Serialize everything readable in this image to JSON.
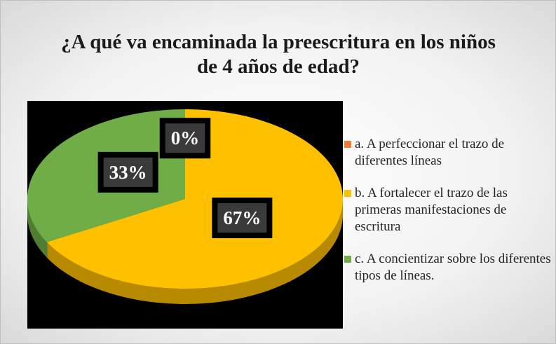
{
  "chart_data": {
    "type": "pie",
    "title": "¿A qué va encaminada la preescritura en los niños de 4 años de edad?",
    "categories": [
      "a.   A perfeccionar el trazo de diferentes líneas",
      "b.   A fortalecer el trazo de las primeras manifestaciones de escritura",
      "c. A concientizar sobre los diferentes tipos de líneas."
    ],
    "values": [
      0,
      67,
      33
    ],
    "value_labels": [
      "0%",
      "67%",
      "33%"
    ],
    "colors": [
      "#ED7D31",
      "#FFC000",
      "#70AD47"
    ],
    "legend": "right"
  }
}
